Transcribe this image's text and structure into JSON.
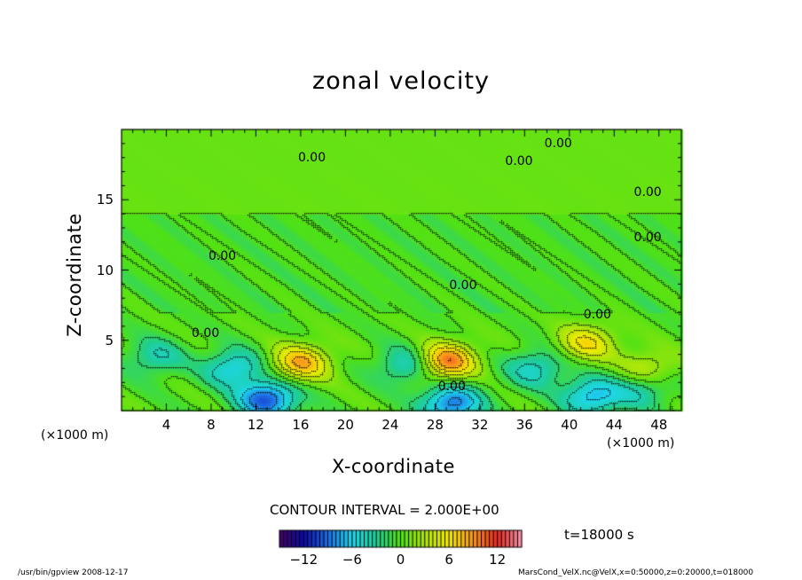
{
  "chart_data": {
    "type": "heatmap",
    "title": "zonal velocity",
    "xlabel": "X-coordinate",
    "ylabel": "Z-coordinate",
    "x_unit_left": "(×1000 m)",
    "x_unit_right": "(×1000 m)",
    "xlim": [
      0,
      50
    ],
    "ylim": [
      0,
      20
    ],
    "x_ticks": [
      4,
      8,
      12,
      16,
      20,
      24,
      28,
      32,
      36,
      40,
      44,
      48
    ],
    "x_tick_labels": [
      "4",
      "8",
      "12",
      "16",
      "20",
      "24",
      "28",
      "32",
      "36",
      "40",
      "44",
      "48"
    ],
    "y_ticks": [
      5,
      10,
      15
    ],
    "y_tick_labels": [
      "5",
      "10",
      "15"
    ],
    "contour_interval_text": "CONTOUR INTERVAL = 2.000E+00",
    "contour_labels": [
      {
        "text": "0.00",
        "x": 17.0,
        "y": 18.0
      },
      {
        "text": "0.00",
        "x": 35.5,
        "y": 17.7
      },
      {
        "text": "0.00",
        "x": 39.0,
        "y": 19.0
      },
      {
        "text": "0.00",
        "x": 47.0,
        "y": 15.5
      },
      {
        "text": "0.00",
        "x": 47.0,
        "y": 12.3
      },
      {
        "text": "0.00",
        "x": 9.0,
        "y": 11.0
      },
      {
        "text": "0.00",
        "x": 30.5,
        "y": 8.9
      },
      {
        "text": "0.00",
        "x": 42.5,
        "y": 6.8
      },
      {
        "text": "0.00",
        "x": 7.5,
        "y": 5.5
      },
      {
        "text": "0.00",
        "x": 29.5,
        "y": 1.7
      }
    ],
    "features": [
      {
        "x": 16.0,
        "y": 3.4,
        "value": 8
      },
      {
        "x": 29.0,
        "y": 3.5,
        "value": 10
      },
      {
        "x": 41.5,
        "y": 4.8,
        "value": 6
      },
      {
        "x": 47.0,
        "y": 3.0,
        "value": 4
      },
      {
        "x": 13.0,
        "y": 0.8,
        "value": -10
      },
      {
        "x": 29.5,
        "y": 0.5,
        "value": -9
      },
      {
        "x": 10.0,
        "y": 3.0,
        "value": -6
      },
      {
        "x": 25.5,
        "y": 3.2,
        "value": -5
      },
      {
        "x": 3.0,
        "y": 3.8,
        "value": -4
      },
      {
        "x": 37.0,
        "y": 3.0,
        "value": -5
      },
      {
        "x": 42.0,
        "y": 1.0,
        "value": -7
      },
      {
        "x": 46.5,
        "y": 1.5,
        "value": -4
      }
    ],
    "colorbar": {
      "min": -15,
      "max": 15,
      "ticks": [
        -12,
        -6,
        0,
        6,
        12
      ],
      "tick_labels": [
        "−12",
        "−6",
        "0",
        "6",
        "12"
      ]
    },
    "time_text": "t=18000 s"
  },
  "footer": {
    "left": "/usr/bin/gpview   2008-12-17",
    "right": "MarsCond_VelX.nc@VelX,x=0:50000,z=0:20000,t=018000"
  }
}
